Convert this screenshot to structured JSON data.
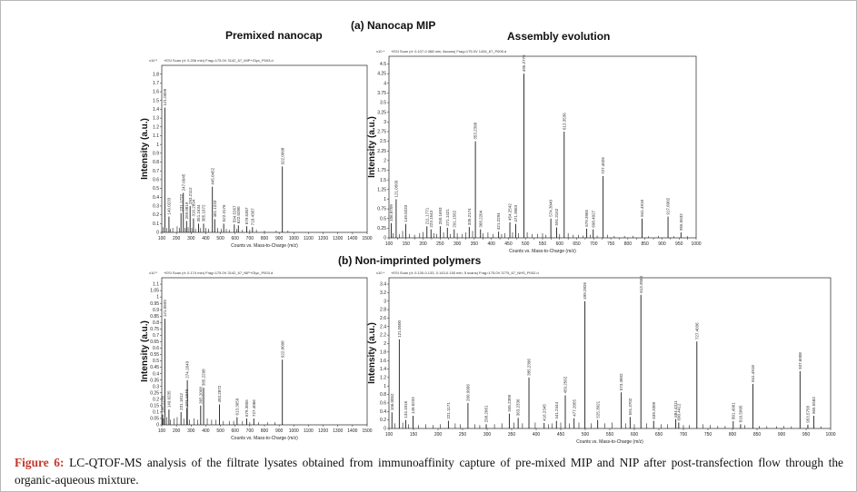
{
  "headings": {
    "top": "(a) Nanocap MIP",
    "bottom": "(b) Non-imprinted polymers",
    "left_col": "Premixed nanocap",
    "right_col": "Assembly evolution"
  },
  "caption": {
    "label": "Figure 6:",
    "text": "LC-QTOF-MS analysis of the filtrate lysates obtained from immunoaffinity capture of pre-mixed MIP and NIP after post-transfection flow through the organic-aqueous mixture."
  },
  "colors": {
    "stick": "#1a1a1a",
    "axis": "#222222",
    "caption_label": "#c0392b"
  },
  "chart_data": [
    {
      "id": "a_premixed",
      "type": "bar",
      "title": "Premixed nanocap",
      "header": "+ESI Scan (rt: 0.206 min) Frag=175.0V 3142_67_MIP+Glyc_P003.d",
      "ylabel": "Intensity (a.u.)",
      "xlabel": "Counts vs. Mass-to-Charge (m/z)",
      "scale_prefix": "x10 ⁵",
      "xlim": [
        100,
        1500
      ],
      "ylim": [
        0,
        1.9
      ],
      "yticks": [
        0,
        0.1,
        0.2,
        0.3,
        0.4,
        0.5,
        0.6,
        0.7,
        0.8,
        0.9,
        1,
        1.1,
        1.2,
        1.3,
        1.4,
        1.5,
        1.6,
        1.7,
        1.8
      ],
      "xticks": [
        100,
        200,
        300,
        400,
        500,
        600,
        700,
        800,
        900,
        1000,
        1100,
        1200,
        1300,
        1400,
        1500
      ],
      "peaks": [
        {
          "x": 121.0509,
          "y": 1.42,
          "label": "121.0509"
        },
        {
          "x": 149.0233,
          "y": 0.18,
          "label": "149.0233"
        },
        {
          "x": 231.1722,
          "y": 0.22,
          "label": "231.1722"
        },
        {
          "x": 247.0945,
          "y": 0.45,
          "label": "247.0945"
        },
        {
          "x": 269.0819,
          "y": 0.13,
          "label": "269.0819"
        },
        {
          "x": 293.2112,
          "y": 0.3,
          "label": "293.2112"
        },
        {
          "x": 316.2894,
          "y": 0.16,
          "label": "316.2894"
        },
        {
          "x": 351.1634,
          "y": 0.1,
          "label": "351.1634"
        },
        {
          "x": 385.1672,
          "y": 0.1,
          "label": "385.1672"
        },
        {
          "x": 445.0452,
          "y": 0.52,
          "label": "445.0452"
        },
        {
          "x": 461.1233,
          "y": 0.15,
          "label": "461.1233"
        },
        {
          "x": 522.3176,
          "y": 0.1,
          "label": "522.3176"
        },
        {
          "x": 594.5267,
          "y": 0.09,
          "label": "594.5267"
        },
        {
          "x": 622.028,
          "y": 0.08,
          "label": "622.0280"
        },
        {
          "x": 679.5367,
          "y": 0.07,
          "label": "679.5367"
        },
        {
          "x": 718.4367,
          "y": 0.06,
          "label": "718.4367"
        },
        {
          "x": 922.0098,
          "y": 0.75,
          "label": "922.0098"
        }
      ],
      "minor_peaks": [
        [
          110,
          0.06
        ],
        [
          135,
          0.05
        ],
        [
          160,
          0.04
        ],
        [
          175,
          0.05
        ],
        [
          205,
          0.07
        ],
        [
          220,
          0.05
        ],
        [
          260,
          0.05
        ],
        [
          280,
          0.06
        ],
        [
          305,
          0.05
        ],
        [
          330,
          0.04
        ],
        [
          365,
          0.05
        ],
        [
          400,
          0.05
        ],
        [
          420,
          0.04
        ],
        [
          480,
          0.05
        ],
        [
          505,
          0.04
        ],
        [
          540,
          0.04
        ],
        [
          560,
          0.03
        ],
        [
          610,
          0.04
        ],
        [
          650,
          0.03
        ],
        [
          700,
          0.03
        ],
        [
          745,
          0.03
        ],
        [
          800,
          0.02
        ],
        [
          880,
          0.02
        ],
        [
          960,
          0.02
        ]
      ]
    },
    {
      "id": "a_assembly",
      "type": "bar",
      "title": "Assembly evolution",
      "header": "+ESI Scan (rt: 0.107-0.368 min, 6scans) Frag=175.0V 1434_67_P005.d",
      "ylabel": "Intensity (a.u.)",
      "xlabel": "Counts vs. Mass-to-Charge (m/z)",
      "scale_prefix": "x10 ⁴",
      "xlim": [
        100,
        1000
      ],
      "ylim": [
        0,
        4.7
      ],
      "yticks": [
        0,
        0.25,
        0.5,
        0.75,
        1,
        1.25,
        1.5,
        1.75,
        2,
        2.25,
        2.5,
        2.75,
        3,
        3.25,
        3.5,
        3.75,
        4,
        4.25,
        4.5
      ],
      "xticks": [
        100,
        125,
        150,
        175,
        200,
        225,
        250,
        275,
        300,
        325,
        350,
        375,
        400,
        425,
        450,
        475,
        500,
        525,
        550,
        575,
        600,
        625,
        650,
        675,
        700,
        725,
        750,
        775,
        800,
        825,
        850,
        875,
        900,
        925,
        950,
        975,
        1000
      ],
      "peaks": [
        {
          "x": 106.8709,
          "y": 0.38,
          "label": "106.8709"
        },
        {
          "x": 121.0509,
          "y": 1.0,
          "label": "121.0509"
        },
        {
          "x": 149.0233,
          "y": 0.36,
          "label": "149.0233"
        },
        {
          "x": 211.1771,
          "y": 0.3,
          "label": "211.1771"
        },
        {
          "x": 223.1543,
          "y": 0.22,
          "label": "223.1543"
        },
        {
          "x": 250.1693,
          "y": 0.3,
          "label": "250.1693"
        },
        {
          "x": 271.1421,
          "y": 0.26,
          "label": "271.1421"
        },
        {
          "x": 291.1562,
          "y": 0.22,
          "label": "291.1562"
        },
        {
          "x": 335.2174,
          "y": 0.28,
          "label": "335.2174"
        },
        {
          "x": 353.2398,
          "y": 2.5,
          "label": "353.2398"
        },
        {
          "x": 368.2204,
          "y": 0.22,
          "label": "368.2204"
        },
        {
          "x": 421.2294,
          "y": 0.16,
          "label": "421.2294"
        },
        {
          "x": 454.2542,
          "y": 0.4,
          "label": "454.2542"
        },
        {
          "x": 471.3063,
          "y": 0.36,
          "label": "471.3063"
        },
        {
          "x": 495.2776,
          "y": 4.25,
          "label": "495.2776"
        },
        {
          "x": 574.304,
          "y": 0.5,
          "label": "574.3040"
        },
        {
          "x": 591.3152,
          "y": 0.27,
          "label": "591.3152"
        },
        {
          "x": 613.3536,
          "y": 2.75,
          "label": "613.3536"
        },
        {
          "x": 679.3965,
          "y": 0.24,
          "label": "679.3965"
        },
        {
          "x": 698.4027,
          "y": 0.22,
          "label": "698.4027"
        },
        {
          "x": 727.4026,
          "y": 1.6,
          "label": "727.4026"
        },
        {
          "x": 841.4918,
          "y": 0.5,
          "label": "841.4918"
        },
        {
          "x": 917.6002,
          "y": 0.55,
          "label": "917.6002"
        },
        {
          "x": 955.5632,
          "y": 0.14,
          "label": "955.5632"
        }
      ],
      "minor_peaks": [
        [
          112,
          0.12
        ],
        [
          130,
          0.1
        ],
        [
          140,
          0.18
        ],
        [
          160,
          0.1
        ],
        [
          175,
          0.08
        ],
        [
          190,
          0.12
        ],
        [
          200,
          0.15
        ],
        [
          232,
          0.12
        ],
        [
          240,
          0.1
        ],
        [
          260,
          0.14
        ],
        [
          280,
          0.1
        ],
        [
          300,
          0.12
        ],
        [
          315,
          0.1
        ],
        [
          325,
          0.14
        ],
        [
          345,
          0.18
        ],
        [
          375,
          0.12
        ],
        [
          390,
          0.14
        ],
        [
          405,
          0.1
        ],
        [
          430,
          0.1
        ],
        [
          440,
          0.12
        ],
        [
          462,
          0.14
        ],
        [
          480,
          0.12
        ],
        [
          505,
          0.14
        ],
        [
          520,
          0.1
        ],
        [
          535,
          0.1
        ],
        [
          550,
          0.12
        ],
        [
          560,
          0.08
        ],
        [
          600,
          0.1
        ],
        [
          625,
          0.12
        ],
        [
          640,
          0.08
        ],
        [
          655,
          0.08
        ],
        [
          668,
          0.06
        ],
        [
          690,
          0.08
        ],
        [
          710,
          0.06
        ],
        [
          740,
          0.08
        ],
        [
          760,
          0.05
        ],
        [
          790,
          0.05
        ],
        [
          815,
          0.05
        ],
        [
          860,
          0.04
        ],
        [
          890,
          0.05
        ],
        [
          935,
          0.04
        ],
        [
          975,
          0.04
        ]
      ]
    },
    {
      "id": "b_premixed",
      "type": "bar",
      "title": "",
      "header": "+ESI Scan (rt: 0.174 min) Frag=175.0V 3142_67_NIP+Glyc_P003.d",
      "ylabel": "Intensity (a.u.)",
      "xlabel": "Counts vs. Mass-to-Charge (m/z)",
      "scale_prefix": "x10 ⁵",
      "xlim": [
        100,
        1500
      ],
      "ylim": [
        0,
        1.15
      ],
      "yticks": [
        0,
        0.05,
        0.1,
        0.15,
        0.2,
        0.25,
        0.3,
        0.35,
        0.4,
        0.45,
        0.5,
        0.55,
        0.6,
        0.65,
        0.7,
        0.75,
        0.8,
        0.85,
        0.9,
        0.95,
        1,
        1.05,
        1.1
      ],
      "xticks": [
        100,
        200,
        300,
        400,
        500,
        600,
        700,
        800,
        900,
        1000,
        1100,
        1200,
        1300,
        1400,
        1500
      ],
      "peaks": [
        {
          "x": 106.2238,
          "y": 0.08,
          "label": "106.2238"
        },
        {
          "x": 121.0509,
          "y": 0.83,
          "label": "121.0509"
        },
        {
          "x": 149.0235,
          "y": 0.12,
          "label": "149.0235"
        },
        {
          "x": 231.1812,
          "y": 0.1,
          "label": "231.1812"
        },
        {
          "x": 271.164,
          "y": 0.13,
          "label": "271.1640"
        },
        {
          "x": 274.1649,
          "y": 0.35,
          "label": "274.1649"
        },
        {
          "x": 365.2098,
          "y": 0.15,
          "label": "365.2098"
        },
        {
          "x": 385.2298,
          "y": 0.29,
          "label": "385.2298"
        },
        {
          "x": 493.2872,
          "y": 0.16,
          "label": "493.2872"
        },
        {
          "x": 613.3659,
          "y": 0.06,
          "label": "613.3659"
        },
        {
          "x": 679.3855,
          "y": 0.05,
          "label": "679.3855"
        },
        {
          "x": 727.4066,
          "y": 0.05,
          "label": "727.4066"
        },
        {
          "x": 922.0098,
          "y": 0.51,
          "label": "922.0098"
        }
      ],
      "minor_peaks": [
        [
          112,
          0.05
        ],
        [
          135,
          0.06
        ],
        [
          160,
          0.04
        ],
        [
          185,
          0.05
        ],
        [
          205,
          0.06
        ],
        [
          250,
          0.05
        ],
        [
          290,
          0.04
        ],
        [
          320,
          0.05
        ],
        [
          345,
          0.04
        ],
        [
          410,
          0.05
        ],
        [
          440,
          0.04
        ],
        [
          470,
          0.04
        ],
        [
          520,
          0.03
        ],
        [
          560,
          0.03
        ],
        [
          590,
          0.03
        ],
        [
          650,
          0.03
        ],
        [
          700,
          0.02
        ],
        [
          760,
          0.02
        ],
        [
          820,
          0.02
        ],
        [
          870,
          0.02
        ]
      ]
    },
    {
      "id": "b_assembly",
      "type": "bar",
      "title": "",
      "header": "+ESI Scan (rt: 0.130-0.133, 0.143-0.150 min, 5 scans) Frag=175.0V 3775_67_NHS_P002.d",
      "ylabel": "Intensity (a.u.)",
      "xlabel": "Counts vs. Mass-to-Charge (m/z)",
      "scale_prefix": "x10 ⁴",
      "xlim": [
        100,
        1000
      ],
      "ylim": [
        0,
        3.55
      ],
      "yticks": [
        0,
        0.2,
        0.4,
        0.6,
        0.8,
        1,
        1.2,
        1.4,
        1.6,
        1.8,
        2,
        2.2,
        2.4,
        2.6,
        2.8,
        3,
        3.2,
        3.4
      ],
      "xticks": [
        100,
        150,
        200,
        250,
        300,
        350,
        400,
        450,
        500,
        550,
        600,
        650,
        700,
        750,
        800,
        850,
        900,
        950,
        1000
      ],
      "peaks": [
        {
          "x": 106.0052,
          "y": 0.38,
          "label": "106.0052"
        },
        {
          "x": 121.05,
          "y": 2.1,
          "label": "121.0500"
        },
        {
          "x": 134.1016,
          "y": 0.2,
          "label": "134.1016"
        },
        {
          "x": 149.0233,
          "y": 0.3,
          "label": "149.0233"
        },
        {
          "x": 221.1171,
          "y": 0.18,
          "label": "221.1171"
        },
        {
          "x": 260.9666,
          "y": 0.6,
          "label": "260.9666"
        },
        {
          "x": 298.2061,
          "y": 0.1,
          "label": "298.2061"
        },
        {
          "x": 345.2309,
          "y": 0.35,
          "label": "345.2309"
        },
        {
          "x": 363.2336,
          "y": 0.25,
          "label": "363.2336"
        },
        {
          "x": 385.2396,
          "y": 1.2,
          "label": "385.2396"
        },
        {
          "x": 416.2345,
          "y": 0.13,
          "label": "416.2345"
        },
        {
          "x": 441.2444,
          "y": 0.18,
          "label": "441.2444"
        },
        {
          "x": 459.2562,
          "y": 0.78,
          "label": "459.2562"
        },
        {
          "x": 477.2055,
          "y": 0.24,
          "label": "477.2055"
        },
        {
          "x": 499.2826,
          "y": 3.0,
          "label": "499.2826"
        },
        {
          "x": 525.3021,
          "y": 0.2,
          "label": "525.3021"
        },
        {
          "x": 573.3602,
          "y": 0.85,
          "label": "573.3602"
        },
        {
          "x": 591.3702,
          "y": 0.27,
          "label": "591.3702"
        },
        {
          "x": 613.3564,
          "y": 3.15,
          "label": "613.3564"
        },
        {
          "x": 639.3309,
          "y": 0.18,
          "label": "639.3309"
        },
        {
          "x": 684.4311,
          "y": 0.22,
          "label": "684.4311"
        },
        {
          "x": 690.4412,
          "y": 0.14,
          "label": "690.4412"
        },
        {
          "x": 727.4036,
          "y": 2.05,
          "label": "727.4036"
        },
        {
          "x": 801.4961,
          "y": 0.17,
          "label": "801.4961"
        },
        {
          "x": 816.5005,
          "y": 0.1,
          "label": "816.5005"
        },
        {
          "x": 841.4918,
          "y": 1.05,
          "label": "841.4918"
        },
        {
          "x": 937.6008,
          "y": 1.35,
          "label": "937.6008"
        },
        {
          "x": 953.5758,
          "y": 0.09,
          "label": "953.5758"
        },
        {
          "x": 965.5583,
          "y": 0.3,
          "label": "965.5583"
        }
      ],
      "minor_peaks": [
        [
          112,
          0.12
        ],
        [
          128,
          0.14
        ],
        [
          140,
          0.1
        ],
        [
          160,
          0.08
        ],
        [
          175,
          0.1
        ],
        [
          190,
          0.08
        ],
        [
          205,
          0.1
        ],
        [
          235,
          0.12
        ],
        [
          245,
          0.1
        ],
        [
          275,
          0.1
        ],
        [
          285,
          0.08
        ],
        [
          315,
          0.1
        ],
        [
          330,
          0.12
        ],
        [
          355,
          0.14
        ],
        [
          372,
          0.12
        ],
        [
          398,
          0.14
        ],
        [
          425,
          0.1
        ],
        [
          432,
          0.12
        ],
        [
          450,
          0.14
        ],
        [
          468,
          0.12
        ],
        [
          487,
          0.14
        ],
        [
          512,
          0.12
        ],
        [
          540,
          0.12
        ],
        [
          555,
          0.14
        ],
        [
          582,
          0.12
        ],
        [
          600,
          0.1
        ],
        [
          625,
          0.12
        ],
        [
          655,
          0.1
        ],
        [
          668,
          0.1
        ],
        [
          700,
          0.08
        ],
        [
          712,
          0.08
        ],
        [
          740,
          0.1
        ],
        [
          755,
          0.08
        ],
        [
          770,
          0.06
        ],
        [
          785,
          0.06
        ],
        [
          825,
          0.08
        ],
        [
          855,
          0.06
        ],
        [
          870,
          0.05
        ],
        [
          890,
          0.05
        ],
        [
          905,
          0.06
        ],
        [
          920,
          0.05
        ],
        [
          980,
          0.05
        ]
      ]
    }
  ]
}
